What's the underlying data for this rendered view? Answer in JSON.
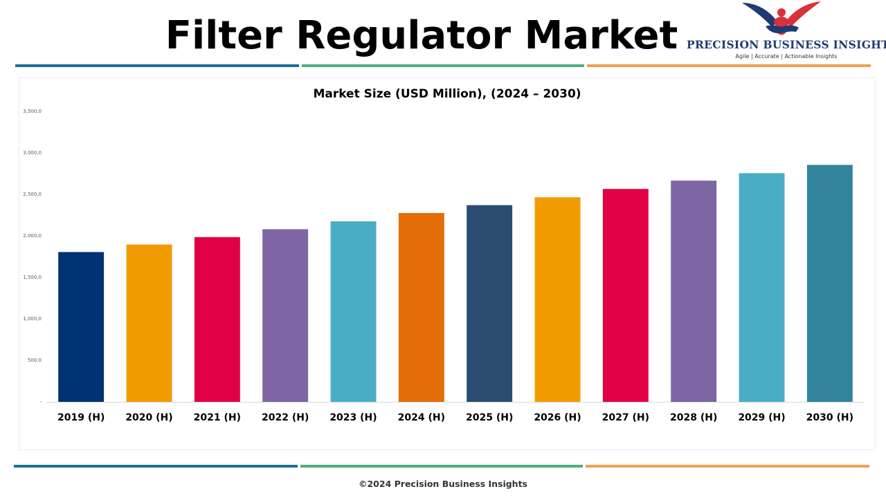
{
  "header": {
    "title": "Filter Regulator Market"
  },
  "logo": {
    "name": "PRECISION BUSINESS INSIGHTS",
    "tagline": "Agile | Accurate | Actionable Insights",
    "mark_icon": "eagle-handshake-icon",
    "colors": {
      "navy": "#1f3a73",
      "red": "#d9303a"
    }
  },
  "stripes": {
    "colors": [
      "#1a6f95",
      "#4cae84",
      "#f0a14b"
    ]
  },
  "chart_data": {
    "type": "bar",
    "title": "Market Size (USD Million), (2024 – 2030)",
    "xlabel": "",
    "ylabel": "",
    "ylim": [
      0,
      3500
    ],
    "yticks": [
      0,
      500,
      1000,
      1500,
      2000,
      2500,
      3000,
      3500
    ],
    "ytick_labels": [
      "-",
      "500,0",
      "1,000,0",
      "1,500,0",
      "2,000,0",
      "2,500,0",
      "3,000,0",
      "3,500,0"
    ],
    "categories": [
      "2019 (H)",
      "2020 (H)",
      "2021 (H)",
      "2022 (H)",
      "2023 (H)",
      "2024 (H)",
      "2025 (H)",
      "2026 (H)",
      "2027 (H)",
      "2028 (H)",
      "2029 (H)",
      "2030 (H)"
    ],
    "values": [
      1805,
      1895,
      1985,
      2080,
      2175,
      2275,
      2370,
      2465,
      2565,
      2665,
      2755,
      2855
    ],
    "bar_colors": [
      "#003373",
      "#f29b00",
      "#e10043",
      "#7e66a4",
      "#4aadc6",
      "#e36c09",
      "#2a4c73",
      "#f29b00",
      "#e10043",
      "#7e66a4",
      "#4aadc6",
      "#31849b"
    ],
    "grid": false,
    "legend": "none"
  },
  "footer": {
    "copyright": "©2024 Precision Business Insights"
  }
}
